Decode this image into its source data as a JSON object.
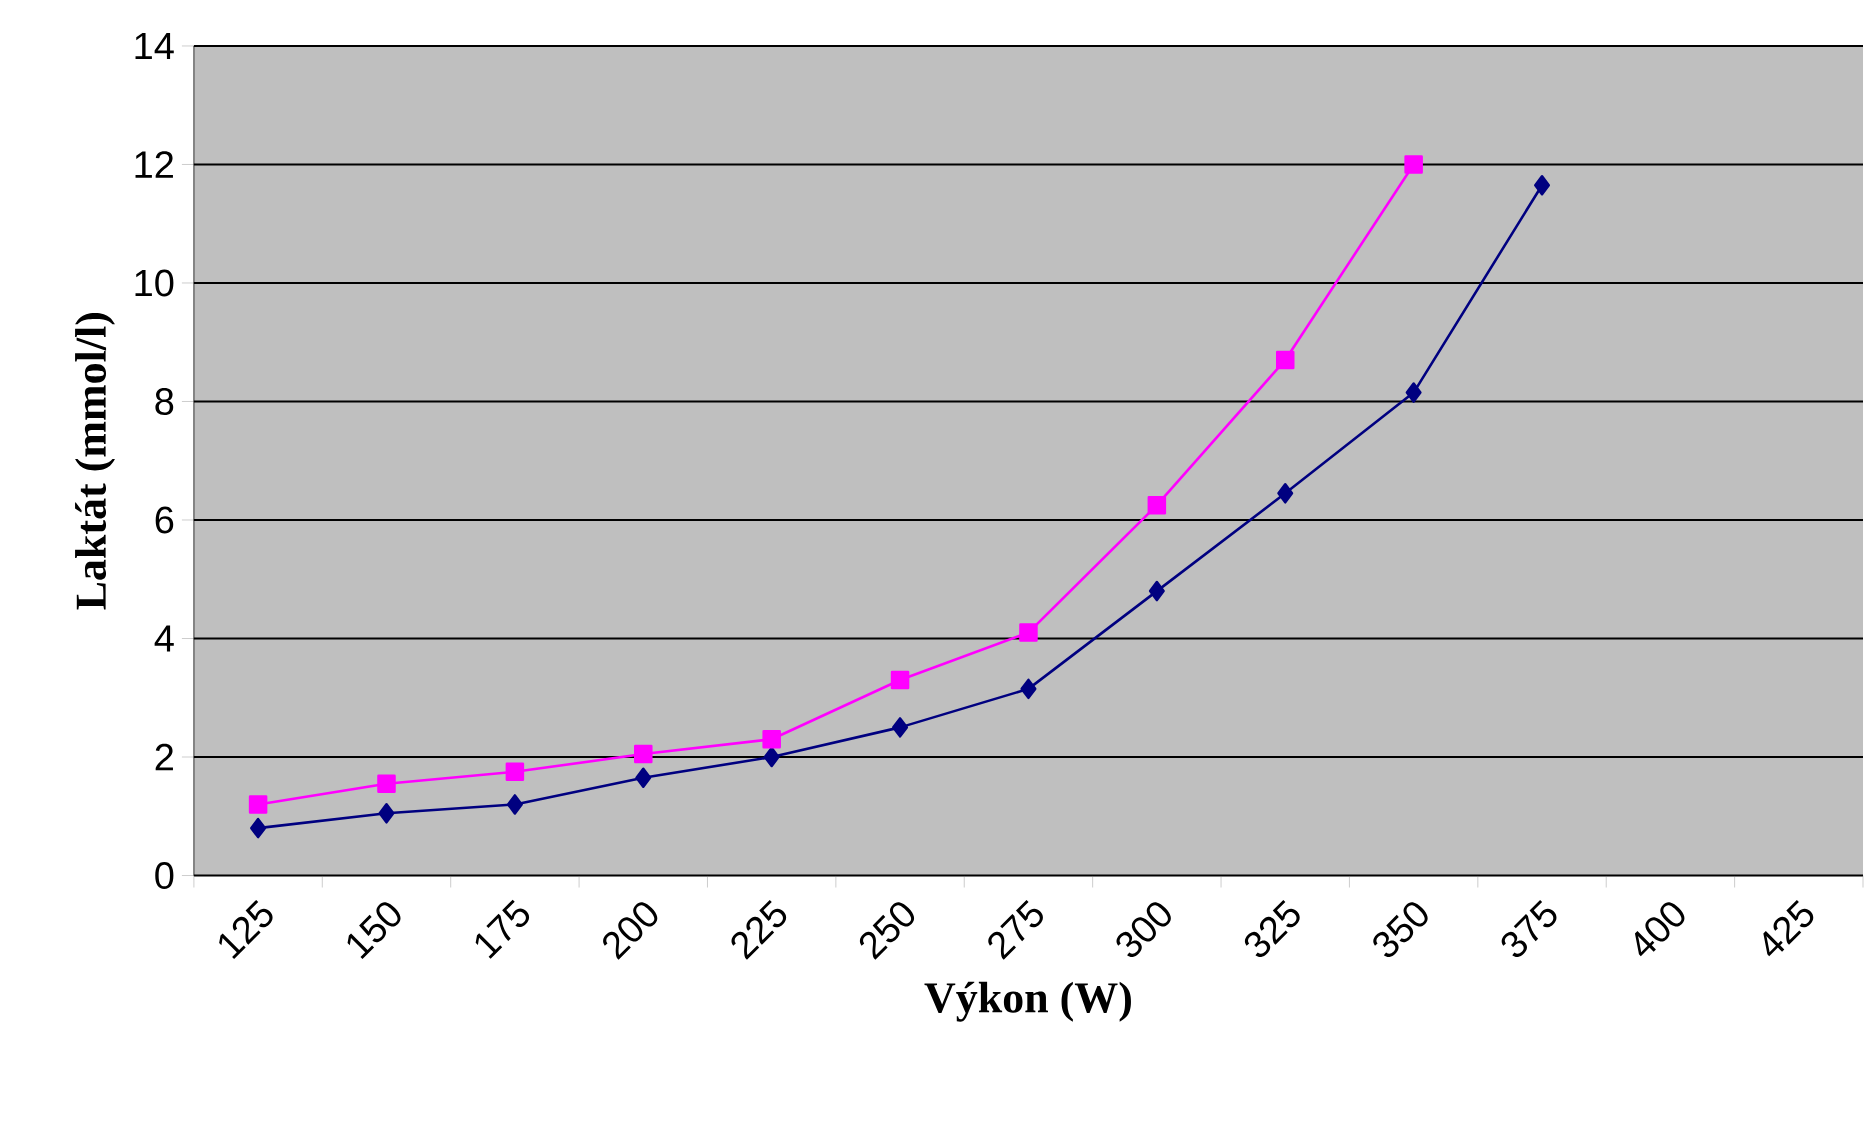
{
  "chart_data": {
    "type": "line",
    "xlabel": "Výkon (W)",
    "ylabel": "Laktát (mmol/l)",
    "categories": [
      "125",
      "150",
      "175",
      "200",
      "225",
      "250",
      "275",
      "300",
      "325",
      "350",
      "375",
      "400",
      "425"
    ],
    "series": [
      {
        "color": "#000080",
        "marker": "diamond",
        "values": [
          0.8,
          1.05,
          1.2,
          1.65,
          2.0,
          2.5,
          3.15,
          4.8,
          6.45,
          8.15,
          11.65,
          null,
          null
        ]
      },
      {
        "color": "#ff00ff",
        "marker": "square",
        "values": [
          1.2,
          1.55,
          1.75,
          2.05,
          2.3,
          3.3,
          4.1,
          6.25,
          8.7,
          12.0,
          null,
          null,
          null
        ]
      }
    ],
    "ylim": [
      0,
      14
    ],
    "yticks": [
      0,
      2,
      4,
      6,
      8,
      10,
      12,
      14
    ],
    "grid": "y"
  }
}
